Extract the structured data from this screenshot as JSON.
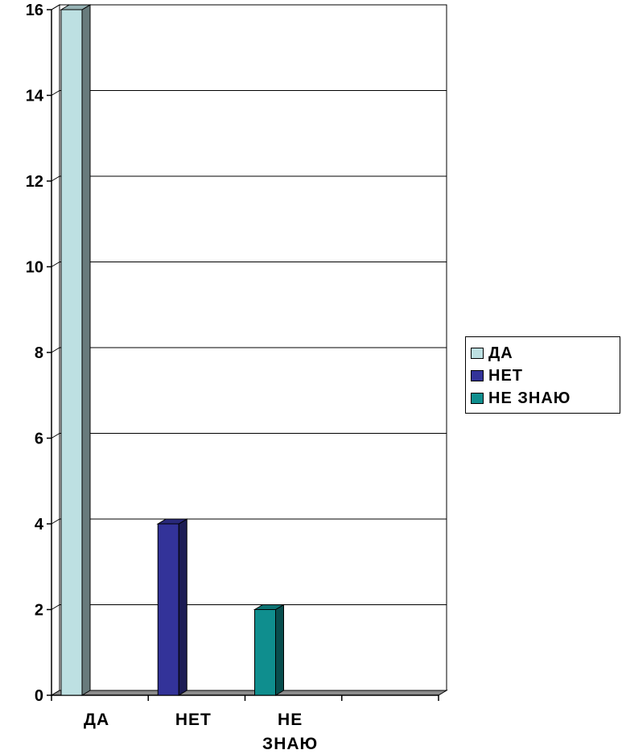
{
  "chart_data": {
    "type": "bar",
    "categories": [
      "ДА",
      "НЕТ",
      "НЕ ЗНАЮ"
    ],
    "category_label_lines": [
      [
        "ДА"
      ],
      [
        "НЕТ"
      ],
      [
        "НЕ",
        "ЗНАЮ"
      ]
    ],
    "values": [
      16,
      4,
      2
    ],
    "colors": [
      "#bde0e2",
      "#333399",
      "#0f8e8e"
    ],
    "title": "",
    "xlabel": "",
    "ylabel": "",
    "ylim": [
      0,
      16
    ],
    "yticks": [
      0,
      2,
      4,
      6,
      8,
      10,
      12,
      14,
      16
    ],
    "grid": true,
    "three_d": true,
    "legend": {
      "position": "right",
      "entries": [
        {
          "label": "ДА",
          "color": "#bde0e2"
        },
        {
          "label": "НЕТ",
          "color": "#333399"
        },
        {
          "label": "НЕ ЗНАЮ",
          "color": "#0f8e8e"
        }
      ]
    }
  }
}
